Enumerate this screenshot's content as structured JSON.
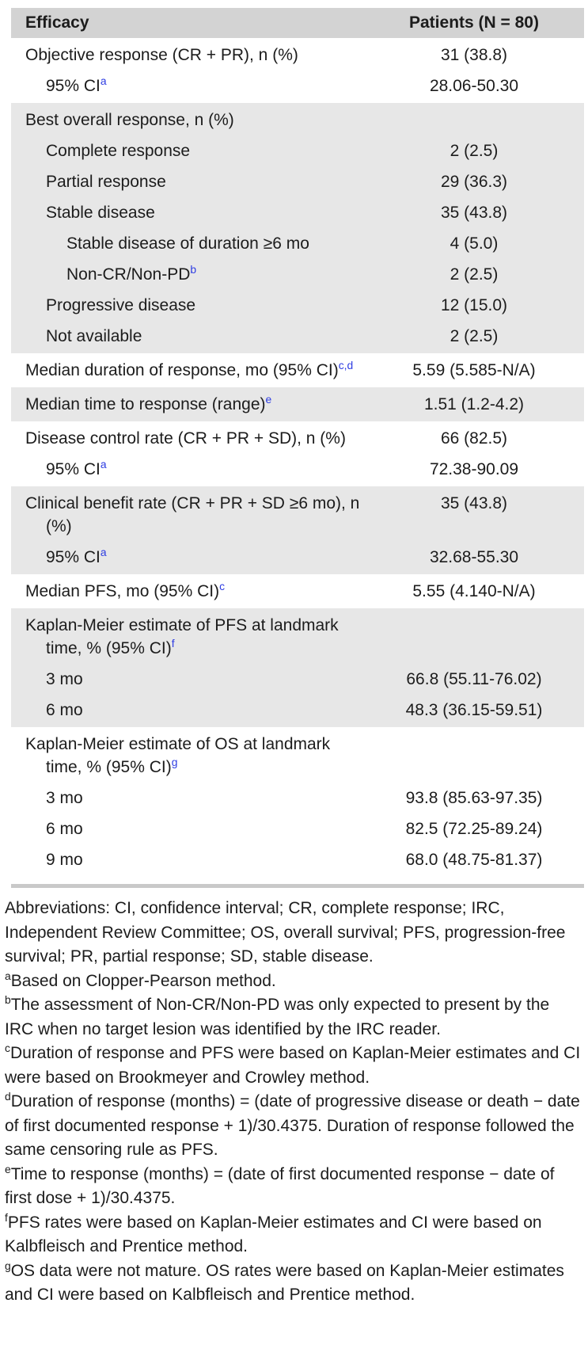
{
  "palette": {
    "header_band": "#d3d3d3",
    "row_band": "#e7e7e7",
    "rule": "#c9c9c9",
    "text": "#1c1c1c",
    "superscript_blue": "#2d3ce2"
  },
  "table": {
    "header": {
      "label": "Efficacy",
      "value": "Patients (N = 80)"
    },
    "groups": [
      {
        "shade": "white",
        "rows": [
          {
            "label": "Objective response (CR + PR), n (%)",
            "sup": "",
            "value": "31 (38.8)",
            "indent": 0
          },
          {
            "label": "95% CI",
            "sup": "a",
            "value": "28.06-50.30",
            "indent": 1
          }
        ]
      },
      {
        "shade": "gray",
        "rows": [
          {
            "label": "Best overall response, n (%)",
            "sup": "",
            "value": "",
            "indent": 0
          },
          {
            "label": "Complete response",
            "sup": "",
            "value": "2 (2.5)",
            "indent": 1
          },
          {
            "label": "Partial response",
            "sup": "",
            "value": "29 (36.3)",
            "indent": 1
          },
          {
            "label": "Stable disease",
            "sup": "",
            "value": "35 (43.8)",
            "indent": 1
          },
          {
            "label": "Stable disease of duration ≥6 mo",
            "sup": "",
            "value": "4 (5.0)",
            "indent": 2
          },
          {
            "label": "Non-CR/Non-PD",
            "sup": "b",
            "value": "2 (2.5)",
            "indent": 2
          },
          {
            "label": "Progressive disease",
            "sup": "",
            "value": "12 (15.0)",
            "indent": 1
          },
          {
            "label": "Not available",
            "sup": "",
            "value": "2 (2.5)",
            "indent": 1
          }
        ]
      },
      {
        "shade": "white",
        "rows": [
          {
            "label": "Median duration of response, mo (95% CI)",
            "sup": "c,d",
            "value": "5.59 (5.585-N/A)",
            "indent": 0
          }
        ]
      },
      {
        "shade": "gray",
        "rows": [
          {
            "label": "Median time to response (range)",
            "sup": "e",
            "value": "1.51 (1.2-4.2)",
            "indent": 0
          }
        ]
      },
      {
        "shade": "white",
        "rows": [
          {
            "label": "Disease control rate (CR + PR + SD), n (%)",
            "sup": "",
            "value": "66 (82.5)",
            "indent": 0
          },
          {
            "label": "95% CI",
            "sup": "a",
            "value": "72.38-90.09",
            "indent": 1
          }
        ]
      },
      {
        "shade": "gray",
        "rows": [
          {
            "label": "Clinical benefit rate (CR + PR + SD ≥6 mo), n (%)",
            "sup": "",
            "value": "35 (43.8)",
            "indent": 0
          },
          {
            "label": "95% CI",
            "sup": "a",
            "value": "32.68-55.30",
            "indent": 1
          }
        ]
      },
      {
        "shade": "white",
        "rows": [
          {
            "label": "Median PFS, mo (95% CI)",
            "sup": "c",
            "value": "5.55 (4.140-N/A)",
            "indent": 0
          }
        ]
      },
      {
        "shade": "gray",
        "rows": [
          {
            "label": "Kaplan-Meier estimate of PFS at landmark time, % (95% CI)",
            "sup": "f",
            "value": "",
            "indent": 0
          },
          {
            "label": "3 mo",
            "sup": "",
            "value": "66.8 (55.11-76.02)",
            "indent": 1
          },
          {
            "label": "6 mo",
            "sup": "",
            "value": "48.3 (36.15-59.51)",
            "indent": 1
          }
        ]
      },
      {
        "shade": "white",
        "rows": [
          {
            "label": "Kaplan-Meier estimate of OS at landmark time, % (95% CI)",
            "sup": "g",
            "value": "",
            "indent": 0
          },
          {
            "label": "3 mo",
            "sup": "",
            "value": "93.8 (85.63-97.35)",
            "indent": 1
          },
          {
            "label": "6 mo",
            "sup": "",
            "value": "82.5 (72.25-89.24)",
            "indent": 1
          },
          {
            "label": "9 mo",
            "sup": "",
            "value": "68.0 (48.75-81.37)",
            "indent": 1
          }
        ]
      }
    ]
  },
  "footnotes": [
    {
      "marker": "",
      "text": "Abbreviations: CI, confidence interval; CR, complete response; IRC, Independent Review Committee; OS, overall survival; PFS, progression-free survival; PR, partial response; SD, stable disease."
    },
    {
      "marker": "a",
      "text": "Based on Clopper-Pearson method."
    },
    {
      "marker": "b",
      "text": "The assessment of Non-CR/Non-PD was only expected to present by the IRC when no target lesion was identified by the IRC reader."
    },
    {
      "marker": "c",
      "text": "Duration of response and PFS were based on Kaplan-Meier estimates and CI were based on Brookmeyer and Crowley method."
    },
    {
      "marker": "d",
      "text": "Duration of response (months) = (date of progressive disease or death − date of first documented response + 1)/30.4375. Duration of response followed the same censoring rule as PFS."
    },
    {
      "marker": "e",
      "text": "Time to response (months) = (date of first documented response − date of first dose + 1)/30.4375."
    },
    {
      "marker": "f",
      "text": "PFS rates were based on Kaplan-Meier estimates and CI were based on Kalbfleisch and Prentice method."
    },
    {
      "marker": "g",
      "text": "OS data were not mature. OS rates were based on Kaplan-Meier estimates and CI were based on Kalbfleisch and Prentice method."
    }
  ]
}
